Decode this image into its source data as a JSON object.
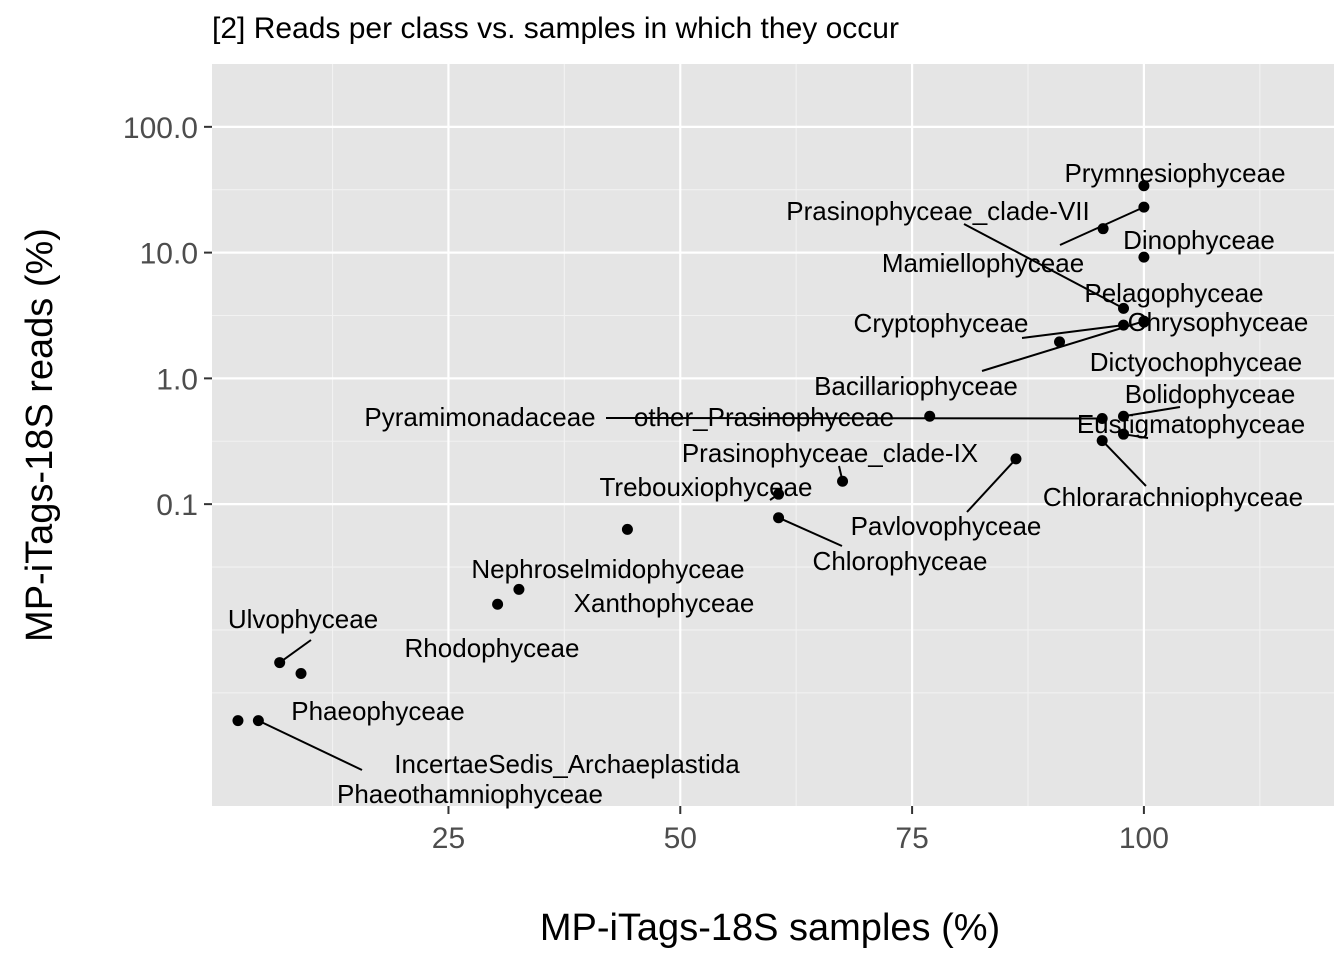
{
  "chart_data": {
    "type": "scatter",
    "title": "[2] Reads per class vs. samples in which they occur",
    "xlabel": "MP-iTags-18S samples (%)",
    "ylabel": "MP-iTags-18S reads (%)",
    "x_scale": "linear",
    "y_scale": "log10",
    "xlim": [
      -0.5,
      120.5
    ],
    "ylim": [
      0.000398,
      316
    ],
    "x_ticks": [
      25,
      50,
      75,
      100
    ],
    "x_tick_labels": [
      "25",
      "50",
      "75",
      "100"
    ],
    "y_ticks": [
      0.1,
      1,
      10,
      100
    ],
    "y_tick_labels": [
      "0.1",
      "1.0",
      "10.0",
      "100.0"
    ],
    "grid": true,
    "background": "#e5e5e5",
    "point_color": "#000000",
    "points": [
      {
        "label": "Prymnesiophyceae",
        "x": 100,
        "y": 34
      },
      {
        "label": "Prasinophyceae_clade-VII",
        "x": 97.8,
        "y": 3.6
      },
      {
        "label": "Dinophyceae",
        "x": 100,
        "y": 23
      },
      {
        "label": "Mamiellophyceae",
        "x": 95.6,
        "y": 15.5
      },
      {
        "label": "Pelagophyceae",
        "x": 100,
        "y": 9.2
      },
      {
        "label": "Chrysophyceae",
        "x": 100,
        "y": 2.8
      },
      {
        "label": "Cryptophyceae",
        "x": 97.8,
        "y": 2.65
      },
      {
        "label": "Dictyochophyceae",
        "x": 90.9,
        "y": 1.95
      },
      {
        "label": "Bacillariophyceae",
        "x": 100,
        "y": 2.85
      },
      {
        "label": "Bolidophyceae",
        "x": 97.8,
        "y": 0.5
      },
      {
        "label": "Pyramimonadaceae",
        "x": 76.9,
        "y": 0.5
      },
      {
        "label": "other_Prasinophyceae",
        "x": 95.5,
        "y": 0.48
      },
      {
        "label": "Eustigmatophyceae",
        "x": 97.8,
        "y": 0.36
      },
      {
        "label": "Prasinophyceae_clade-IX",
        "x": 67.5,
        "y": 0.152
      },
      {
        "label": "Chlorarachniophyceae",
        "x": 95.5,
        "y": 0.32
      },
      {
        "label": "Trebouxiophyceae",
        "x": 60.6,
        "y": 0.12
      },
      {
        "label": "Pavlovophyceae",
        "x": 86.2,
        "y": 0.229
      },
      {
        "label": "Chlorophyceae",
        "x": 60.6,
        "y": 0.078
      },
      {
        "label": "Nephroselmidophyceae",
        "x": 44.3,
        "y": 0.063
      },
      {
        "label": "Xanthophyceae",
        "x": 32.6,
        "y": 0.021
      },
      {
        "label": "Rhodophyceae",
        "x": 30.3,
        "y": 0.016
      },
      {
        "label": "Ulvophyceae",
        "x": 6.8,
        "y": 0.0055
      },
      {
        "label": "Phaeophyceae",
        "x": 9.1,
        "y": 0.0045
      },
      {
        "label": "IncertaeSedis_Archaeplastida",
        "x": 4.5,
        "y": 0.0019
      },
      {
        "label": "Phaeothamniophyceae",
        "x": 2.3,
        "y": 0.0019
      }
    ]
  }
}
